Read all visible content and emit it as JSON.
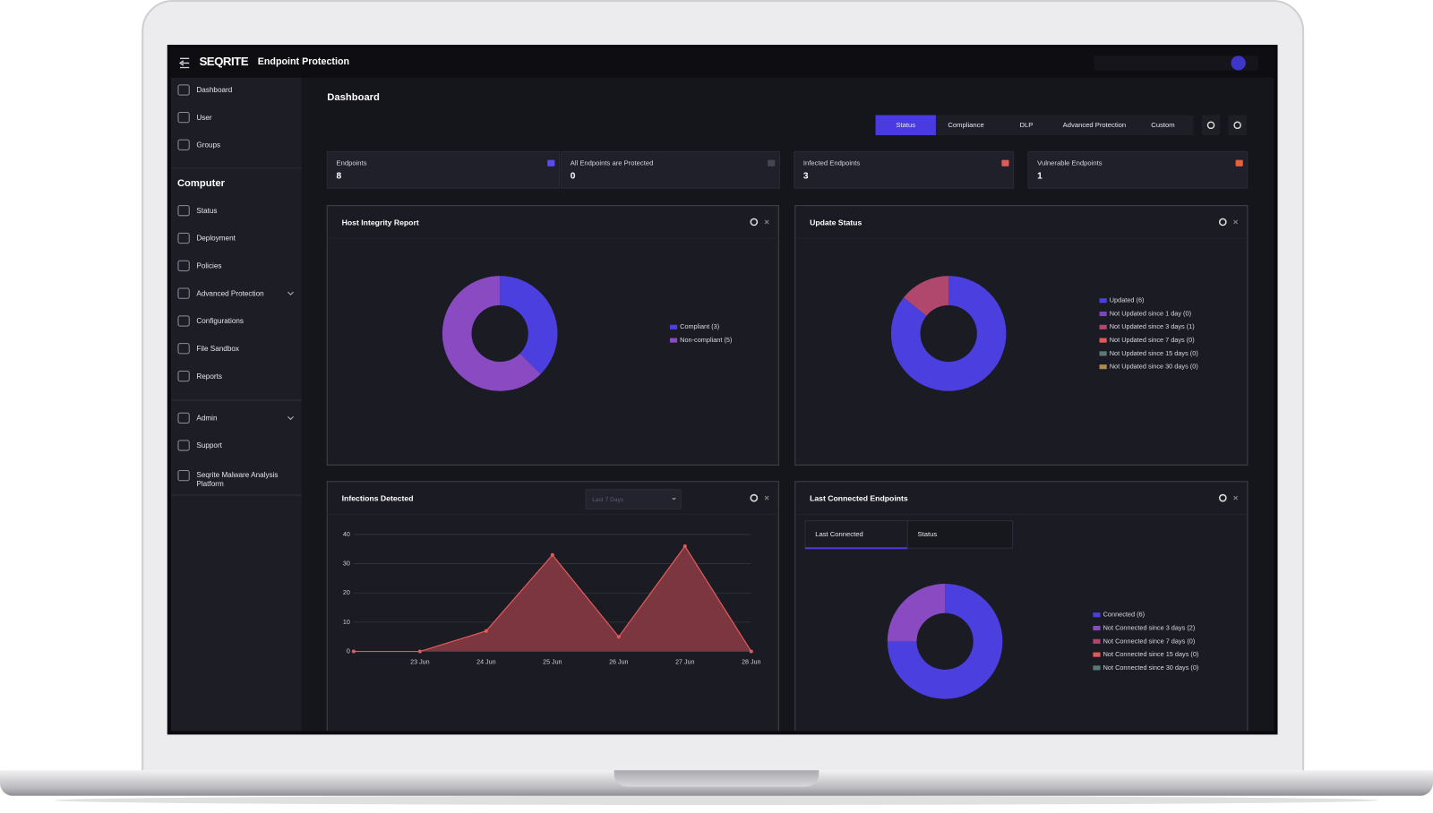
{
  "header": {
    "brand": "SEQRITE",
    "product": "Endpoint Protection"
  },
  "sidebar": {
    "top": [
      "Dashboard",
      "User",
      "Groups"
    ],
    "section": "Computer",
    "computer": [
      "Status",
      "Deployment",
      "Policies",
      "Advanced Protection",
      "Configurations",
      "File Sandbox",
      "Reports"
    ],
    "bottom": [
      "Admin",
      "Support",
      [
        "Seqrite Malware Analysis",
        "Platform"
      ]
    ]
  },
  "page_title": "Dashboard",
  "tabs": [
    "Status",
    "Compliance",
    "DLP",
    "Advanced Protection",
    "Custom"
  ],
  "active_tab": 0,
  "cards": [
    {
      "label": "Endpoints",
      "value": 8
    },
    {
      "label": "All Endpoints are Protected",
      "value": 0
    },
    {
      "label": "Infected Endpoints",
      "value": 3
    },
    {
      "label": "Vulnerable Endpoints",
      "value": 1
    }
  ],
  "chart_data": [
    {
      "type": "pie",
      "title": "Host Integrity Report",
      "categories": [
        "Compliant (3)",
        "Non-compliant (5)"
      ],
      "values": [
        3,
        5
      ],
      "colors": [
        "#4b3fe0",
        "#8a4bc2"
      ]
    },
    {
      "type": "pie",
      "title": "Update Status",
      "categories": [
        "Updated (6)",
        "Not Updated since 1 day (0)",
        "Not Updated since 3 days (1)",
        "Not Updated since 7 days (0)",
        "Not Updated since 15 days (0)",
        "Not Updated since 30 days (0)"
      ],
      "values": [
        6,
        0,
        1,
        0,
        0,
        0
      ],
      "colors": [
        "#4b3fe0",
        "#7a45c0",
        "#b0486e",
        "#e05a5a",
        "#5d7878",
        "#b08a4a"
      ]
    },
    {
      "type": "line",
      "title": "Infections Detected",
      "filter": "Last 7 Days",
      "categories": [
        null,
        "23 Jun",
        "24 Jun",
        "25 Jun",
        "26 Jun",
        "27 Jun",
        "28 Jun"
      ],
      "values": [
        0,
        0,
        7,
        33,
        5,
        36,
        0
      ],
      "color": "#e05a5a",
      "ylim": [
        0,
        40
      ],
      "yticks": [
        0,
        10,
        20,
        30,
        40
      ],
      "grid": true
    },
    {
      "type": "pie",
      "title": "Last Connected Endpoints",
      "tabs": [
        "Last Connected",
        "Status"
      ],
      "categories": [
        "Connected (6)",
        "Not Connected since 3 days (2)",
        "Not Connected since 7 days (0)",
        "Not Connected since 15 days (0)",
        "Not Connected since 30 days (0)"
      ],
      "values": [
        6,
        2,
        0,
        0,
        0
      ],
      "colors": [
        "#4b3fe0",
        "#8a4bc2",
        "#b0486e",
        "#e05a5a",
        "#5d7878"
      ]
    }
  ]
}
